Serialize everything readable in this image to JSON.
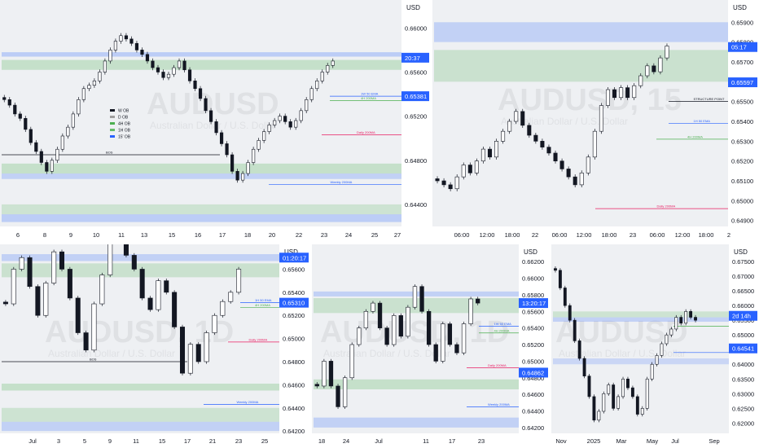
{
  "chart_data": [
    {
      "type": "candlestick",
      "symbol": "AUDUSD",
      "name": "Australian Dollar / U.S. Dollar",
      "currency": "USD",
      "y_ticks": [
        "0.66000",
        "0.65600",
        "0.65200",
        "0.64800",
        "0.64400"
      ],
      "ylim": [
        0.642,
        0.6615
      ],
      "x_ticks": [
        "6",
        "8",
        "9",
        "10",
        "11",
        "13",
        "15",
        "16",
        "17",
        "18",
        "20",
        "22",
        "23",
        "24",
        "25",
        "27"
      ],
      "price_badges": [
        {
          "text": "20:37",
          "price": 0.6573,
          "color": "#2962ff"
        },
        {
          "text": "0.65381",
          "price": 0.65381,
          "color": "#2962ff"
        }
      ],
      "legend": [
        "W OB",
        "D OB",
        "4H OB",
        "1H OB",
        "15' OB"
      ],
      "annotations": [
        "BOS",
        "1W 50 EMA",
        "4H 200MA",
        "Daily 200MA",
        "Weekly 200MA"
      ],
      "closes": [
        0.6535,
        0.653,
        0.6522,
        0.6518,
        0.6508,
        0.6496,
        0.6488,
        0.6478,
        0.647,
        0.648,
        0.649,
        0.6502,
        0.651,
        0.6522,
        0.6535,
        0.6545,
        0.6548,
        0.6552,
        0.656,
        0.657,
        0.658,
        0.6588,
        0.6593,
        0.659,
        0.6586,
        0.658,
        0.6576,
        0.657,
        0.6564,
        0.656,
        0.6555,
        0.6558,
        0.6564,
        0.657,
        0.6562,
        0.6552,
        0.6545,
        0.6536,
        0.6525,
        0.6515,
        0.6505,
        0.6495,
        0.6485,
        0.647,
        0.6462,
        0.6468,
        0.6478,
        0.649,
        0.6498,
        0.6506,
        0.6512,
        0.6516,
        0.652,
        0.6515,
        0.651,
        0.6516,
        0.6525,
        0.6535,
        0.6545,
        0.6552,
        0.656,
        0.6566,
        0.657
      ]
    },
    {
      "type": "candlestick",
      "symbol": "AUDUSD, 15",
      "name": "Australian Dollar / U.S. Dollar",
      "currency": "USD",
      "y_ticks": [
        "0.65900",
        "0.65800",
        "0.65700",
        "0.65600",
        "0.65500",
        "0.65400",
        "0.65300",
        "0.65200",
        "0.65100",
        "0.65000",
        "0.64900"
      ],
      "ylim": [
        0.6487,
        0.6593
      ],
      "x_ticks": [
        "06:00",
        "12:00",
        "18:00",
        "22",
        "06:00",
        "12:00",
        "18:00",
        "23",
        "06:00",
        "12:00",
        "18:00",
        "2"
      ],
      "price_badges": [
        {
          "text": "05:17",
          "price": 0.65775,
          "color": "#2962ff"
        },
        {
          "text": "0.65597",
          "price": 0.65597,
          "color": "#2962ff"
        }
      ],
      "annotations": [
        "STRUCTURE POINT",
        "1H 50 EMA",
        "4H 200MA",
        "Daily 200MA"
      ],
      "closes": [
        0.651,
        0.6508,
        0.6506,
        0.6512,
        0.6518,
        0.6514,
        0.652,
        0.6526,
        0.6522,
        0.653,
        0.6535,
        0.654,
        0.6545,
        0.6538,
        0.6533,
        0.653,
        0.6527,
        0.6524,
        0.652,
        0.6516,
        0.6512,
        0.6508,
        0.6514,
        0.6522,
        0.6535,
        0.6548,
        0.6556,
        0.6552,
        0.6557,
        0.6552,
        0.6558,
        0.6563,
        0.6568,
        0.6565,
        0.6572,
        0.6578
      ]
    },
    {
      "type": "candlestick",
      "symbol": "AUDUSD, 1D",
      "name": "Australian Dollar / U.S. Dollar",
      "currency": "USD",
      "y_ticks": [
        "0.65600",
        "0.65400",
        "0.65200",
        "0.65000",
        "0.64800",
        "0.64600",
        "0.64400",
        "0.64200"
      ],
      "ylim": [
        0.6418,
        0.6573
      ],
      "x_ticks": [
        "Jul",
        "3",
        "5",
        "9",
        "11",
        "15",
        "17",
        "21",
        "23",
        "25"
      ],
      "price_badges": [
        {
          "text": "01:20:17",
          "price": 0.657,
          "color": "#2962ff"
        },
        {
          "text": "0.65310",
          "price": 0.6531,
          "color": "#2962ff"
        }
      ],
      "annotations": [
        "BOS",
        "1H 50 EMA",
        "4H 200MA",
        "Daily 200MA",
        "Weekly 200MA"
      ],
      "closes": [
        0.653,
        0.656,
        0.657,
        0.6545,
        0.652,
        0.6548,
        0.6575,
        0.656,
        0.6535,
        0.6505,
        0.649,
        0.653,
        0.6555,
        0.6585,
        0.6595,
        0.6572,
        0.656,
        0.6535,
        0.6525,
        0.655,
        0.654,
        0.651,
        0.647,
        0.6495,
        0.648,
        0.6505,
        0.652,
        0.6532,
        0.654,
        0.656
      ]
    },
    {
      "type": "candlestick",
      "symbol": "AUDUSD, 1D",
      "name": "Australian Dollar / U.S. Dollar",
      "currency": "USD",
      "y_ticks": [
        "0.66200",
        "0.66000",
        "0.65800",
        "0.65600",
        "0.65400",
        "0.65200",
        "0.65000",
        "0.64800",
        "0.64600",
        "0.64400",
        "0.64200"
      ],
      "ylim": [
        0.6413,
        0.6629
      ],
      "x_ticks": [
        "18",
        "24",
        "Jul",
        "11",
        "17",
        "23"
      ],
      "price_badges": [
        {
          "text": "13:20:17",
          "price": 0.657,
          "color": "#2962ff"
        },
        {
          "text": "0.64862",
          "price": 0.64862,
          "color": "#2962ff"
        }
      ],
      "annotations": [
        "1W 50 EMA",
        "4H 200MA",
        "Daily 200MA",
        "Weekly 200MA"
      ],
      "closes": [
        0.647,
        0.65,
        0.647,
        0.6445,
        0.648,
        0.652,
        0.654,
        0.656,
        0.657,
        0.654,
        0.652,
        0.6555,
        0.653,
        0.6565,
        0.659,
        0.656,
        0.652,
        0.65,
        0.6545,
        0.652,
        0.651,
        0.6545,
        0.6575,
        0.657
      ]
    },
    {
      "type": "candlestick",
      "symbol": "AUDUSD",
      "name": "Australian Dollar / U.S. Dollar",
      "currency": "USD",
      "y_ticks": [
        "0.67500",
        "0.67000",
        "0.66500",
        "0.66000",
        "0.65500",
        "0.65000",
        "0.64500",
        "0.64000",
        "0.63500",
        "0.63000",
        "0.62500",
        "0.62000"
      ],
      "ylim": [
        0.6165,
        0.6775
      ],
      "x_ticks": [
        "Nov",
        "2025",
        "Mar",
        "May",
        "Jul",
        "Sep"
      ],
      "price_badges": [
        {
          "text": "2d 14h",
          "price": 0.6565,
          "color": "#2962ff"
        },
        {
          "text": "0.64541",
          "price": 0.64541,
          "color": "#2962ff"
        }
      ],
      "closes": [
        0.672,
        0.666,
        0.66,
        0.655,
        0.648,
        0.642,
        0.636,
        0.629,
        0.621,
        0.624,
        0.63,
        0.633,
        0.625,
        0.629,
        0.635,
        0.632,
        0.629,
        0.623,
        0.625,
        0.635,
        0.64,
        0.643,
        0.647,
        0.65,
        0.652,
        0.656,
        0.654,
        0.658,
        0.656,
        0.655
      ]
    }
  ]
}
